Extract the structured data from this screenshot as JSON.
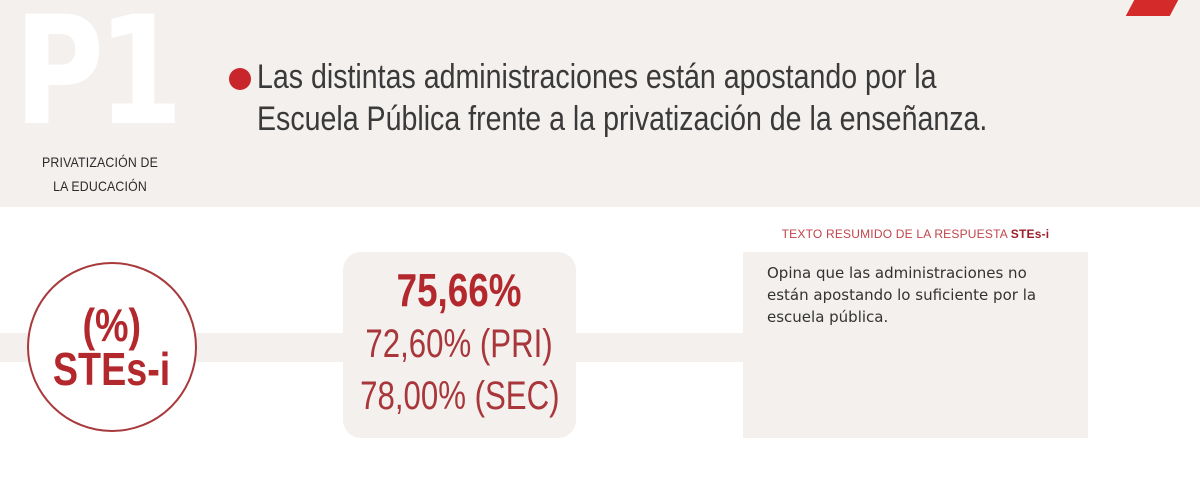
{
  "header": {
    "code": "P1",
    "category_line1": "PRIVATIZACIÓN DE",
    "category_line2": "LA EDUCACIÓN",
    "question": "Las distintas administraciones están apostando por la Escuela Pública frente a la privatización de la enseñanza.",
    "bullet_color": "#c8262a"
  },
  "stats_circle": {
    "line1": "(%)",
    "line2": "STEs-i"
  },
  "results": {
    "total": "75,66%",
    "primary": "72,60% (PRI)",
    "secondary": "78,00% (SEC)"
  },
  "summary": {
    "heading_prefix": "TEXTO RESUMIDO DE LA RESPUESTA",
    "heading_brand": "STEs-i",
    "text": "Opina que las administraciones no están apostando lo suficiente por la escuela pública."
  },
  "colors": {
    "accent_red": "#b3282c",
    "band_gray": "#f3f0ee",
    "text_dark": "#333333"
  }
}
